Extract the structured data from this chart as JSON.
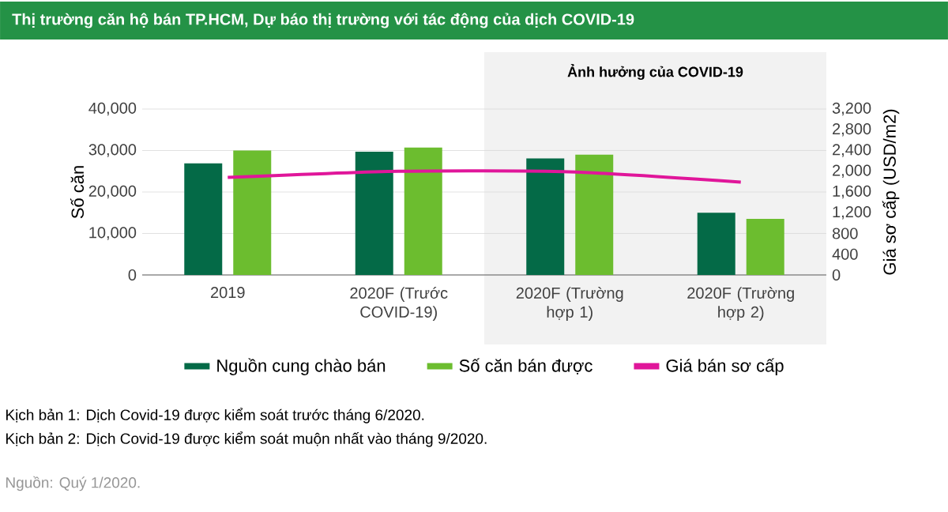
{
  "chart_data": {
    "type": "bar",
    "title": "Thị trường căn hộ bán TP.HCM, Dự báo thị trường với tác động của dịch COVID-19",
    "categories": [
      "2019",
      "2020F (Trước COVID-19)",
      "2020F (Trường hợp 1)",
      "2020F (Trường hợp 2)"
    ],
    "series": [
      {
        "name": "Nguồn cung chào bán",
        "color": "#046a47",
        "values": [
          26900,
          29700,
          28100,
          15000
        ]
      },
      {
        "name": "Số căn bán được",
        "color": "#6cbd2f",
        "values": [
          30000,
          30700,
          29000,
          13500
        ]
      },
      {
        "name": "Giá bán sơ cấp",
        "color": "#e0169a",
        "type": "line",
        "axis": "y2",
        "values": [
          1880,
          2000,
          1990,
          1790
        ]
      }
    ],
    "ylabel": "Số căn",
    "y2label": "Giá sơ cấp (USD/m2)",
    "ylim": [
      0,
      40000
    ],
    "yticks": [
      0,
      {
        "value": 10000,
        "label": "10,000"
      },
      {
        "value": 20000,
        "label": "20,000"
      },
      {
        "value": 30000,
        "label": "30,000"
      },
      {
        "value": 40000,
        "label": "40,000"
      }
    ],
    "y2lim": [
      0,
      3200
    ],
    "y2ticks": [
      0,
      400,
      800,
      {
        "value": 1200,
        "label": "1,200"
      },
      {
        "value": 1600,
        "label": "1,600"
      },
      {
        "value": 2000,
        "label": "2,000"
      },
      {
        "value": 2400,
        "label": "2,400"
      },
      {
        "value": 2800,
        "label": "2,800"
      },
      {
        "value": 3200,
        "label": "3,200"
      }
    ],
    "bands": [
      {
        "axis": "x",
        "from": "2020F (Trường hợp 1)",
        "to": "2020F (Trường hợp 2)",
        "label": "Ảnh hưởng của COVID-19",
        "color": "#f2f2f2"
      }
    ],
    "grid": "y",
    "legend": "bottom",
    "annotations": [
      "Kịch bản 1: Dịch Covid-19 được kiểm soát trước tháng 6/2020.",
      "Kịch bản 2: Dịch Covid-19 được kiểm soát muộn nhất vào tháng 9/2020.",
      "Nguồn: Quý 1/2020."
    ]
  }
}
